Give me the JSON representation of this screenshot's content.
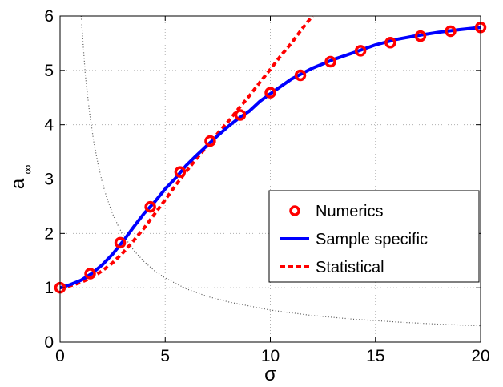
{
  "chart_data": {
    "type": "line",
    "xlabel": "σ",
    "ylabel_main": "a",
    "ylabel_sub": "∞",
    "xlim": [
      0,
      20
    ],
    "ylim": [
      0,
      6
    ],
    "xticks": [
      0,
      5,
      10,
      15,
      20
    ],
    "yticks": [
      0,
      1,
      2,
      3,
      4,
      5,
      6
    ],
    "grid": true,
    "legend_position": "lower-right",
    "series": [
      {
        "name": "Numerics",
        "style": "markers",
        "color": "#ff0000",
        "x": [
          0,
          1.43,
          2.86,
          4.29,
          5.71,
          7.14,
          8.57,
          10.0,
          11.43,
          12.86,
          14.29,
          15.71,
          17.14,
          18.57,
          20.0
        ],
        "y": [
          1.0,
          1.26,
          1.83,
          2.49,
          3.13,
          3.7,
          4.18,
          4.59,
          4.91,
          5.16,
          5.36,
          5.51,
          5.63,
          5.72,
          5.79
        ]
      },
      {
        "name": "Sample specific",
        "style": "solid",
        "color": "#0000ff",
        "x": [
          0,
          0.5,
          1.0,
          1.5,
          2.0,
          2.5,
          3.0,
          3.5,
          4.0,
          4.5,
          5.0,
          5.5,
          6.0,
          6.5,
          7.0,
          7.5,
          8.0,
          8.5,
          9.0,
          9.5,
          10.0,
          11.0,
          12.0,
          13.0,
          14.0,
          15.0,
          16.0,
          17.0,
          18.0,
          19.0,
          20.0
        ],
        "y": [
          1.0,
          1.06,
          1.14,
          1.26,
          1.42,
          1.62,
          1.86,
          2.12,
          2.37,
          2.58,
          2.82,
          3.02,
          3.25,
          3.44,
          3.62,
          3.8,
          3.97,
          4.12,
          4.25,
          4.43,
          4.57,
          4.84,
          5.04,
          5.2,
          5.33,
          5.47,
          5.57,
          5.64,
          5.7,
          5.75,
          5.79
        ]
      },
      {
        "name": "Statistical",
        "style": "dashed",
        "color": "#ff0000",
        "x": [
          0,
          0.5,
          1.0,
          1.5,
          2.0,
          2.5,
          3.0,
          3.5,
          4.0,
          4.5,
          5.0,
          5.5,
          6.0,
          6.5,
          7.0,
          7.5,
          8.0,
          8.5,
          9.0,
          9.5,
          10.0,
          10.5,
          11.0,
          11.5,
          12.0
        ],
        "y": [
          1.0,
          1.04,
          1.1,
          1.19,
          1.31,
          1.46,
          1.65,
          1.87,
          2.1,
          2.36,
          2.62,
          2.89,
          3.14,
          3.38,
          3.61,
          3.84,
          4.06,
          4.3,
          4.53,
          4.78,
          5.02,
          5.27,
          5.5,
          5.76,
          6.0
        ]
      },
      {
        "name": "",
        "style": "dotted",
        "color": "#555555",
        "x": [
          1.0,
          1.2,
          1.4,
          1.6,
          1.8,
          2.0,
          2.2,
          2.5,
          2.8,
          3.0,
          3.5,
          4.0,
          4.5,
          5.0,
          6.0,
          7.0,
          8.0,
          10.0,
          12.0,
          14.0,
          16.0,
          18.0,
          20.0
        ],
        "y": [
          6.0,
          4.92,
          4.22,
          3.69,
          3.28,
          2.95,
          2.68,
          2.36,
          2.11,
          1.97,
          1.69,
          1.48,
          1.31,
          1.18,
          0.98,
          0.84,
          0.74,
          0.59,
          0.49,
          0.42,
          0.37,
          0.33,
          0.3
        ]
      }
    ]
  }
}
